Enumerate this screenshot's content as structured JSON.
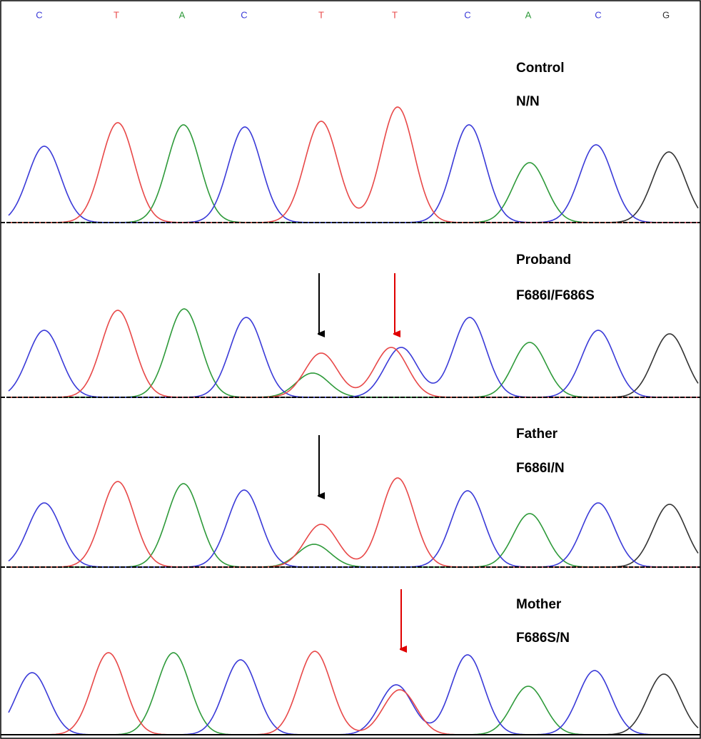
{
  "base_calls": [
    "C",
    "T",
    "A",
    "C",
    "T",
    "T",
    "C",
    "A",
    "C",
    "G"
  ],
  "panels": [
    {
      "name": "Control",
      "genotype": "N/N"
    },
    {
      "name": "Proband",
      "genotype": "F686I/F686S"
    },
    {
      "name": "Father",
      "genotype": "F686I/N"
    },
    {
      "name": "Mother",
      "genotype": "F686S/N"
    }
  ]
}
